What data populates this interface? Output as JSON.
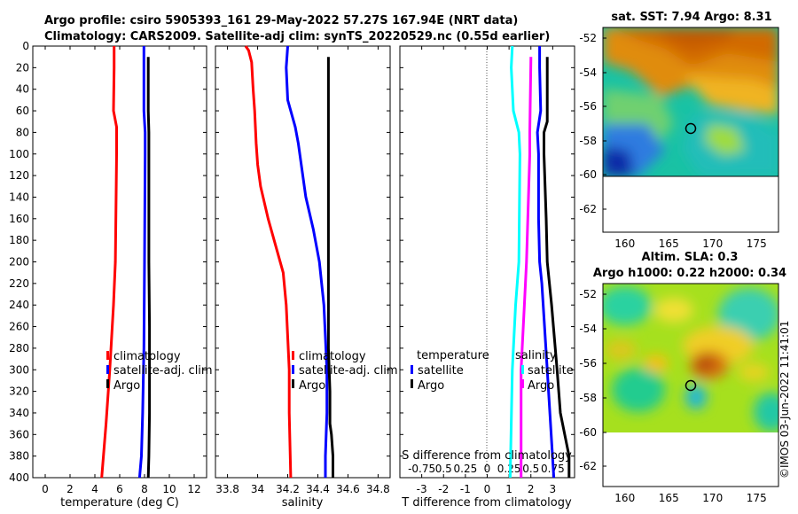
{
  "header": {
    "title_line1": "Argo profile: csiro 5905393_161 29-May-2022 57.27S 167.94E (NRT data)",
    "title_line2": "Climatology: CARS2009. Satellite-adj clim: synTS_20220529.nc (0.55d earlier)"
  },
  "sst_map": {
    "title": "sat. SST: 7.94 Argo: 8.31",
    "y_ticks": [
      "-52",
      "-54",
      "-56",
      "-58",
      "-60",
      "-62"
    ],
    "x_ticks": [
      "160",
      "165",
      "170",
      "175"
    ]
  },
  "sla_map": {
    "title_line1": "Altim. SLA: 0.3",
    "title_line2": "Argo h1000: 0.22 h2000: 0.34",
    "y_ticks": [
      "-52",
      "-54",
      "-56",
      "-58",
      "-60",
      "-62"
    ],
    "x_ticks": [
      "160",
      "165",
      "170",
      "175"
    ]
  },
  "footer": {
    "watermark": "©IMOS 03-Jun-2022 11:41:01"
  },
  "colors": {
    "climatology": "#ff0000",
    "satellite": "#0000ff",
    "argo": "#000000",
    "sat_salinity": "#00ffff",
    "argo_salinity_diff": "#ff00ff"
  },
  "chart_data": [
    {
      "type": "line",
      "id": "temperature",
      "xlabel": "temperature (deg C)",
      "xlim": [
        -1,
        13
      ],
      "ylim": [
        400,
        0
      ],
      "x_ticks": [
        "0",
        "2",
        "4",
        "6",
        "8",
        "10",
        "12"
      ],
      "y_ticks": [
        "0",
        "20",
        "40",
        "60",
        "80",
        "100",
        "120",
        "140",
        "160",
        "180",
        "200",
        "220",
        "240",
        "260",
        "280",
        "300",
        "320",
        "340",
        "360",
        "380",
        "400"
      ],
      "legend": [
        "climatology",
        "satellite-adj. clim",
        "Argo"
      ],
      "series": [
        {
          "name": "climatology",
          "depth": [
            0,
            20,
            60,
            75,
            100,
            200,
            240,
            300,
            350,
            400
          ],
          "values": [
            5.55,
            5.55,
            5.5,
            5.75,
            5.75,
            5.65,
            5.5,
            5.2,
            4.9,
            4.55
          ]
        },
        {
          "name": "satellite-adj. clim",
          "depth": [
            0,
            20,
            60,
            80,
            100,
            200,
            280,
            340,
            380,
            400
          ],
          "values": [
            7.95,
            7.95,
            7.95,
            8.05,
            8.05,
            8.0,
            7.95,
            7.85,
            7.75,
            7.6
          ]
        },
        {
          "name": "Argo",
          "depth": [
            10,
            60,
            80,
            100,
            200,
            260,
            300,
            340,
            380,
            400
          ],
          "values": [
            8.3,
            8.3,
            8.35,
            8.35,
            8.35,
            8.4,
            8.4,
            8.4,
            8.35,
            8.3
          ]
        }
      ]
    },
    {
      "type": "line",
      "id": "salinity",
      "xlabel": "salinity",
      "xlim": [
        33.72,
        34.88
      ],
      "ylim": [
        400,
        0
      ],
      "x_ticks": [
        "33.8",
        "34",
        "34.2",
        "34.4",
        "34.6",
        "34.8"
      ],
      "legend": [
        "climatology",
        "satellite-adj. clim",
        "Argo"
      ],
      "series": [
        {
          "name": "climatology",
          "depth": [
            0,
            4,
            15,
            40,
            60,
            90,
            110,
            130,
            160,
            190,
            210,
            240,
            270,
            300,
            340,
            400
          ],
          "values": [
            33.92,
            33.94,
            33.96,
            33.97,
            33.98,
            33.99,
            34.0,
            34.02,
            34.07,
            34.13,
            34.17,
            34.19,
            34.2,
            34.21,
            34.21,
            34.22
          ]
        },
        {
          "name": "satellite-adj. clim",
          "depth": [
            0,
            20,
            50,
            65,
            75,
            90,
            110,
            140,
            170,
            200,
            240,
            300,
            340,
            380,
            400
          ],
          "values": [
            34.2,
            34.19,
            34.2,
            34.23,
            34.25,
            34.27,
            34.29,
            34.32,
            34.37,
            34.41,
            34.44,
            34.46,
            34.46,
            34.45,
            34.45
          ]
        },
        {
          "name": "Argo",
          "depth": [
            10,
            100,
            200,
            280,
            320,
            350,
            360,
            380,
            400
          ],
          "values": [
            34.47,
            34.47,
            34.47,
            34.47,
            34.48,
            34.48,
            34.49,
            34.5,
            34.5
          ]
        }
      ]
    },
    {
      "type": "line",
      "id": "difference",
      "xlabel": "T difference from climatology",
      "xlabel2": "S difference from climatology",
      "xlim": [
        -4,
        4
      ],
      "ylim": [
        400,
        0
      ],
      "x_ticks": [
        "-3",
        "-2",
        "-1",
        "0",
        "1",
        "2",
        "3"
      ],
      "x_ticks_top": [
        "-0.75",
        "0.5",
        "0.25",
        "0",
        "0.25",
        "0.5",
        "0.75"
      ],
      "legend_left": {
        "title": "temperature",
        "items": [
          "satellite",
          "Argo"
        ]
      },
      "legend_right": {
        "title": "salinity",
        "items": [
          "satellite",
          "Argo"
        ]
      },
      "series": [
        {
          "name": "T satellite",
          "depth": [
            0,
            20,
            60,
            80,
            100,
            160,
            200,
            220,
            300,
            400
          ],
          "values": [
            2.4,
            2.4,
            2.45,
            2.3,
            2.35,
            2.35,
            2.4,
            2.5,
            2.75,
            3.05
          ]
        },
        {
          "name": "T Argo",
          "depth": [
            10,
            70,
            80,
            100,
            160,
            200,
            240,
            300,
            340,
            380,
            400
          ],
          "values": [
            2.75,
            2.75,
            2.6,
            2.6,
            2.7,
            2.75,
            2.95,
            3.2,
            3.35,
            3.75,
            3.75
          ]
        },
        {
          "name": "S satellite",
          "depth": [
            0,
            20,
            60,
            80,
            100,
            200,
            240,
            300,
            400
          ],
          "values": [
            1.15,
            1.1,
            1.2,
            1.45,
            1.5,
            1.45,
            1.3,
            1.15,
            1.05
          ]
        },
        {
          "name": "S Argo",
          "depth": [
            10,
            80,
            100,
            200,
            240,
            300,
            400
          ],
          "values": [
            2.0,
            1.95,
            1.95,
            1.8,
            1.7,
            1.55,
            1.55
          ]
        }
      ]
    }
  ]
}
